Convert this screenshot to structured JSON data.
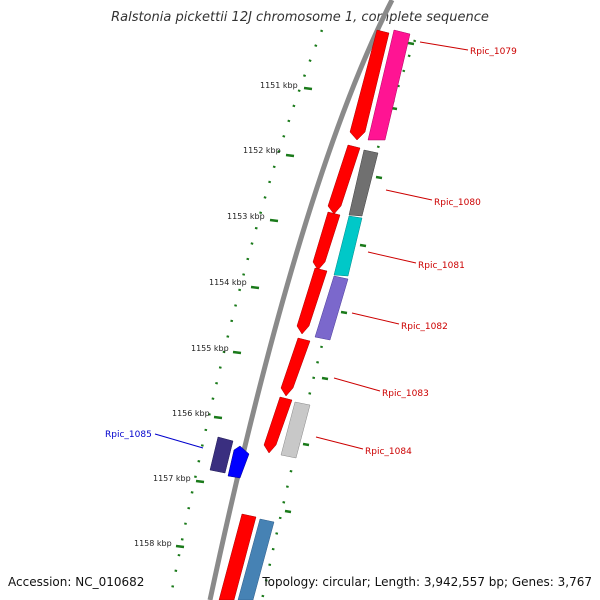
{
  "title": "Ralstonia pickettii 12J chromosome 1, complete sequence",
  "footer": {
    "accession": "Accession: NC_010682",
    "topology_info": "Topology: circular; Length: 3,942,557 bp; Genes: 3,767"
  },
  "colors": {
    "backbone": "#8a8a8a",
    "forward_cds": "#ff0000",
    "tick": "#1a7a1a",
    "label_red": "#cc0000",
    "label_blue": "#0000cc"
  },
  "kbp_ticks": [
    "1151 kbp",
    "1152 kbp",
    "1153 kbp",
    "1154 kbp",
    "1155 kbp",
    "1156 kbp",
    "1157 kbp",
    "1158 kbp"
  ],
  "genes": [
    {
      "label": "Rpic_1079",
      "color": "#ff1493",
      "label_color": "#cc0000"
    },
    {
      "label": "Rpic_1080",
      "color": "#707070",
      "label_color": "#cc0000"
    },
    {
      "label": "Rpic_1081",
      "color": "#00c8c8",
      "label_color": "#cc0000"
    },
    {
      "label": "Rpic_1082",
      "color": "#7b68cc",
      "label_color": "#cc0000"
    },
    {
      "label": "Rpic_1083",
      "color": "#ff0000",
      "label_color": "#cc0000"
    },
    {
      "label": "Rpic_1084",
      "color": "#c8c8c8",
      "label_color": "#cc0000"
    },
    {
      "label": "Rpic_1085",
      "color": "#0000ff",
      "label_color": "#0000cc"
    }
  ]
}
